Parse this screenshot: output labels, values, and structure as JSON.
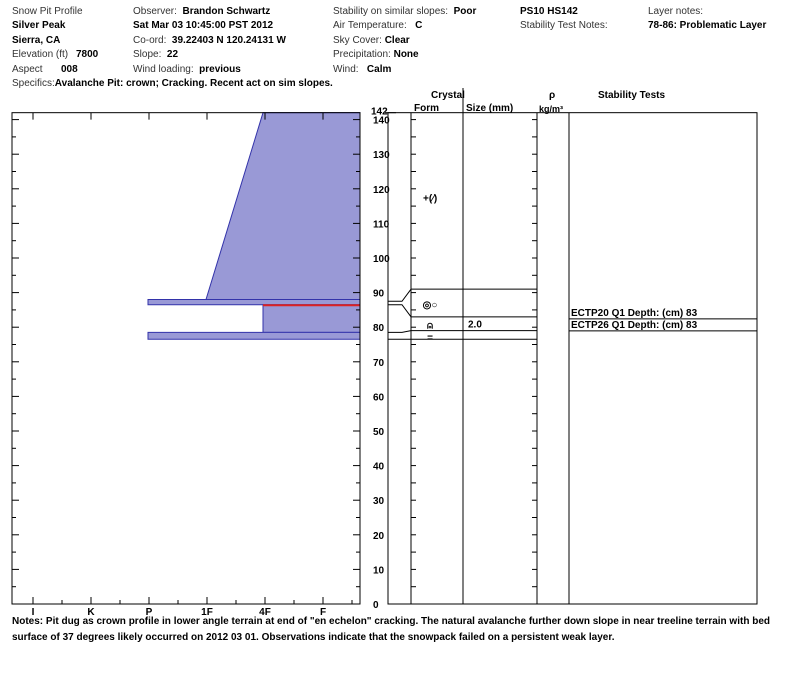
{
  "header": {
    "title": "Snow Pit Profile",
    "location": "Silver Peak",
    "region": "Sierra, CA",
    "elevation_label": "Elevation (ft)",
    "elevation": "7800",
    "aspect_label": "Aspect",
    "aspect": "008",
    "observer_label": "Observer:",
    "observer": "Brandon Schwartz",
    "datetime": "Sat Mar 03 10:45:00 PST 2012",
    "coord_label": "Co-ord:",
    "coord": "39.22403 N 120.24131 W",
    "slope_label": "Slope:",
    "slope": "22",
    "wind_loading_label": "Wind loading:",
    "wind_loading": "previous",
    "specifics_label": "Specifics:",
    "specifics": "Avalanche Pit: crown; Cracking. Recent act on sim slopes.",
    "stability_label": "Stability on similar slopes:",
    "stability": "Poor",
    "air_temp_label": "Air Temperature:",
    "air_temp": "C",
    "sky_label": "Sky Cover:",
    "sky": "Clear",
    "precip_label": "Precipitation:",
    "precip": "None",
    "wind_label": "Wind:",
    "wind": "Calm",
    "ps_hs": "PS10 HS142",
    "stability_notes_label": "Stability Test Notes:",
    "layer_notes_label": "Layer notes:",
    "layer_notes": "78-86: Problematic Layer"
  },
  "columns": {
    "crystal": "Crystal",
    "form": "Form",
    "size": "Size (mm)",
    "rho": "ρ",
    "rho_unit": "kg/m³",
    "stability_tests": "Stability Tests"
  },
  "chart_data": {
    "type": "area",
    "xlabel": "",
    "ylabel": "",
    "x_tick_labels": [
      "I",
      "K",
      "P",
      "1F",
      "4F",
      "F"
    ],
    "y_ticks": [
      0,
      10,
      20,
      30,
      40,
      50,
      60,
      70,
      80,
      90,
      100,
      110,
      120,
      130,
      140
    ],
    "y_top_label": "142",
    "ylim": [
      0,
      142
    ],
    "fill_color": "#9999d6",
    "edge_color": "#3333aa",
    "problem_color": "#dd2222",
    "layers": [
      {
        "top": 142,
        "bottom": 88,
        "hardness_top": "4F",
        "hardness_bottom": "1F+"
      },
      {
        "top": 88,
        "bottom": 86.5,
        "hardness": "P+"
      },
      {
        "top": 86.5,
        "bottom": 78.5,
        "hardness": "4F",
        "problematic": true
      },
      {
        "top": 78.5,
        "bottom": 76.5,
        "hardness": "P+"
      }
    ],
    "crystal_layers": [
      {
        "depth_top": 91,
        "depth_bottom": 83,
        "form": "◎○",
        "size": ""
      },
      {
        "depth_top": 83,
        "depth_bottom": 79,
        "form": "⍝",
        "size": "2.0"
      },
      {
        "depth_top": 79,
        "depth_bottom": 76,
        "form": "=",
        "size": ""
      }
    ],
    "form_symbol_top": "+(⁄)",
    "stability_tests": [
      "ECTP20 Q1 Depth: (cm) 83",
      "ECTP26 Q1 Depth: (cm) 83"
    ]
  },
  "notes_label": "Notes:",
  "notes": "Pit dug as crown profile in lower angle terrain at end of \"en echelon\" cracking. The natural avalanche further down slope in near treeline terrain with bed surface of 37 degrees likely occurred on 2012 03 01. Observations indicate that the snowpack failed on a persistent weak layer."
}
